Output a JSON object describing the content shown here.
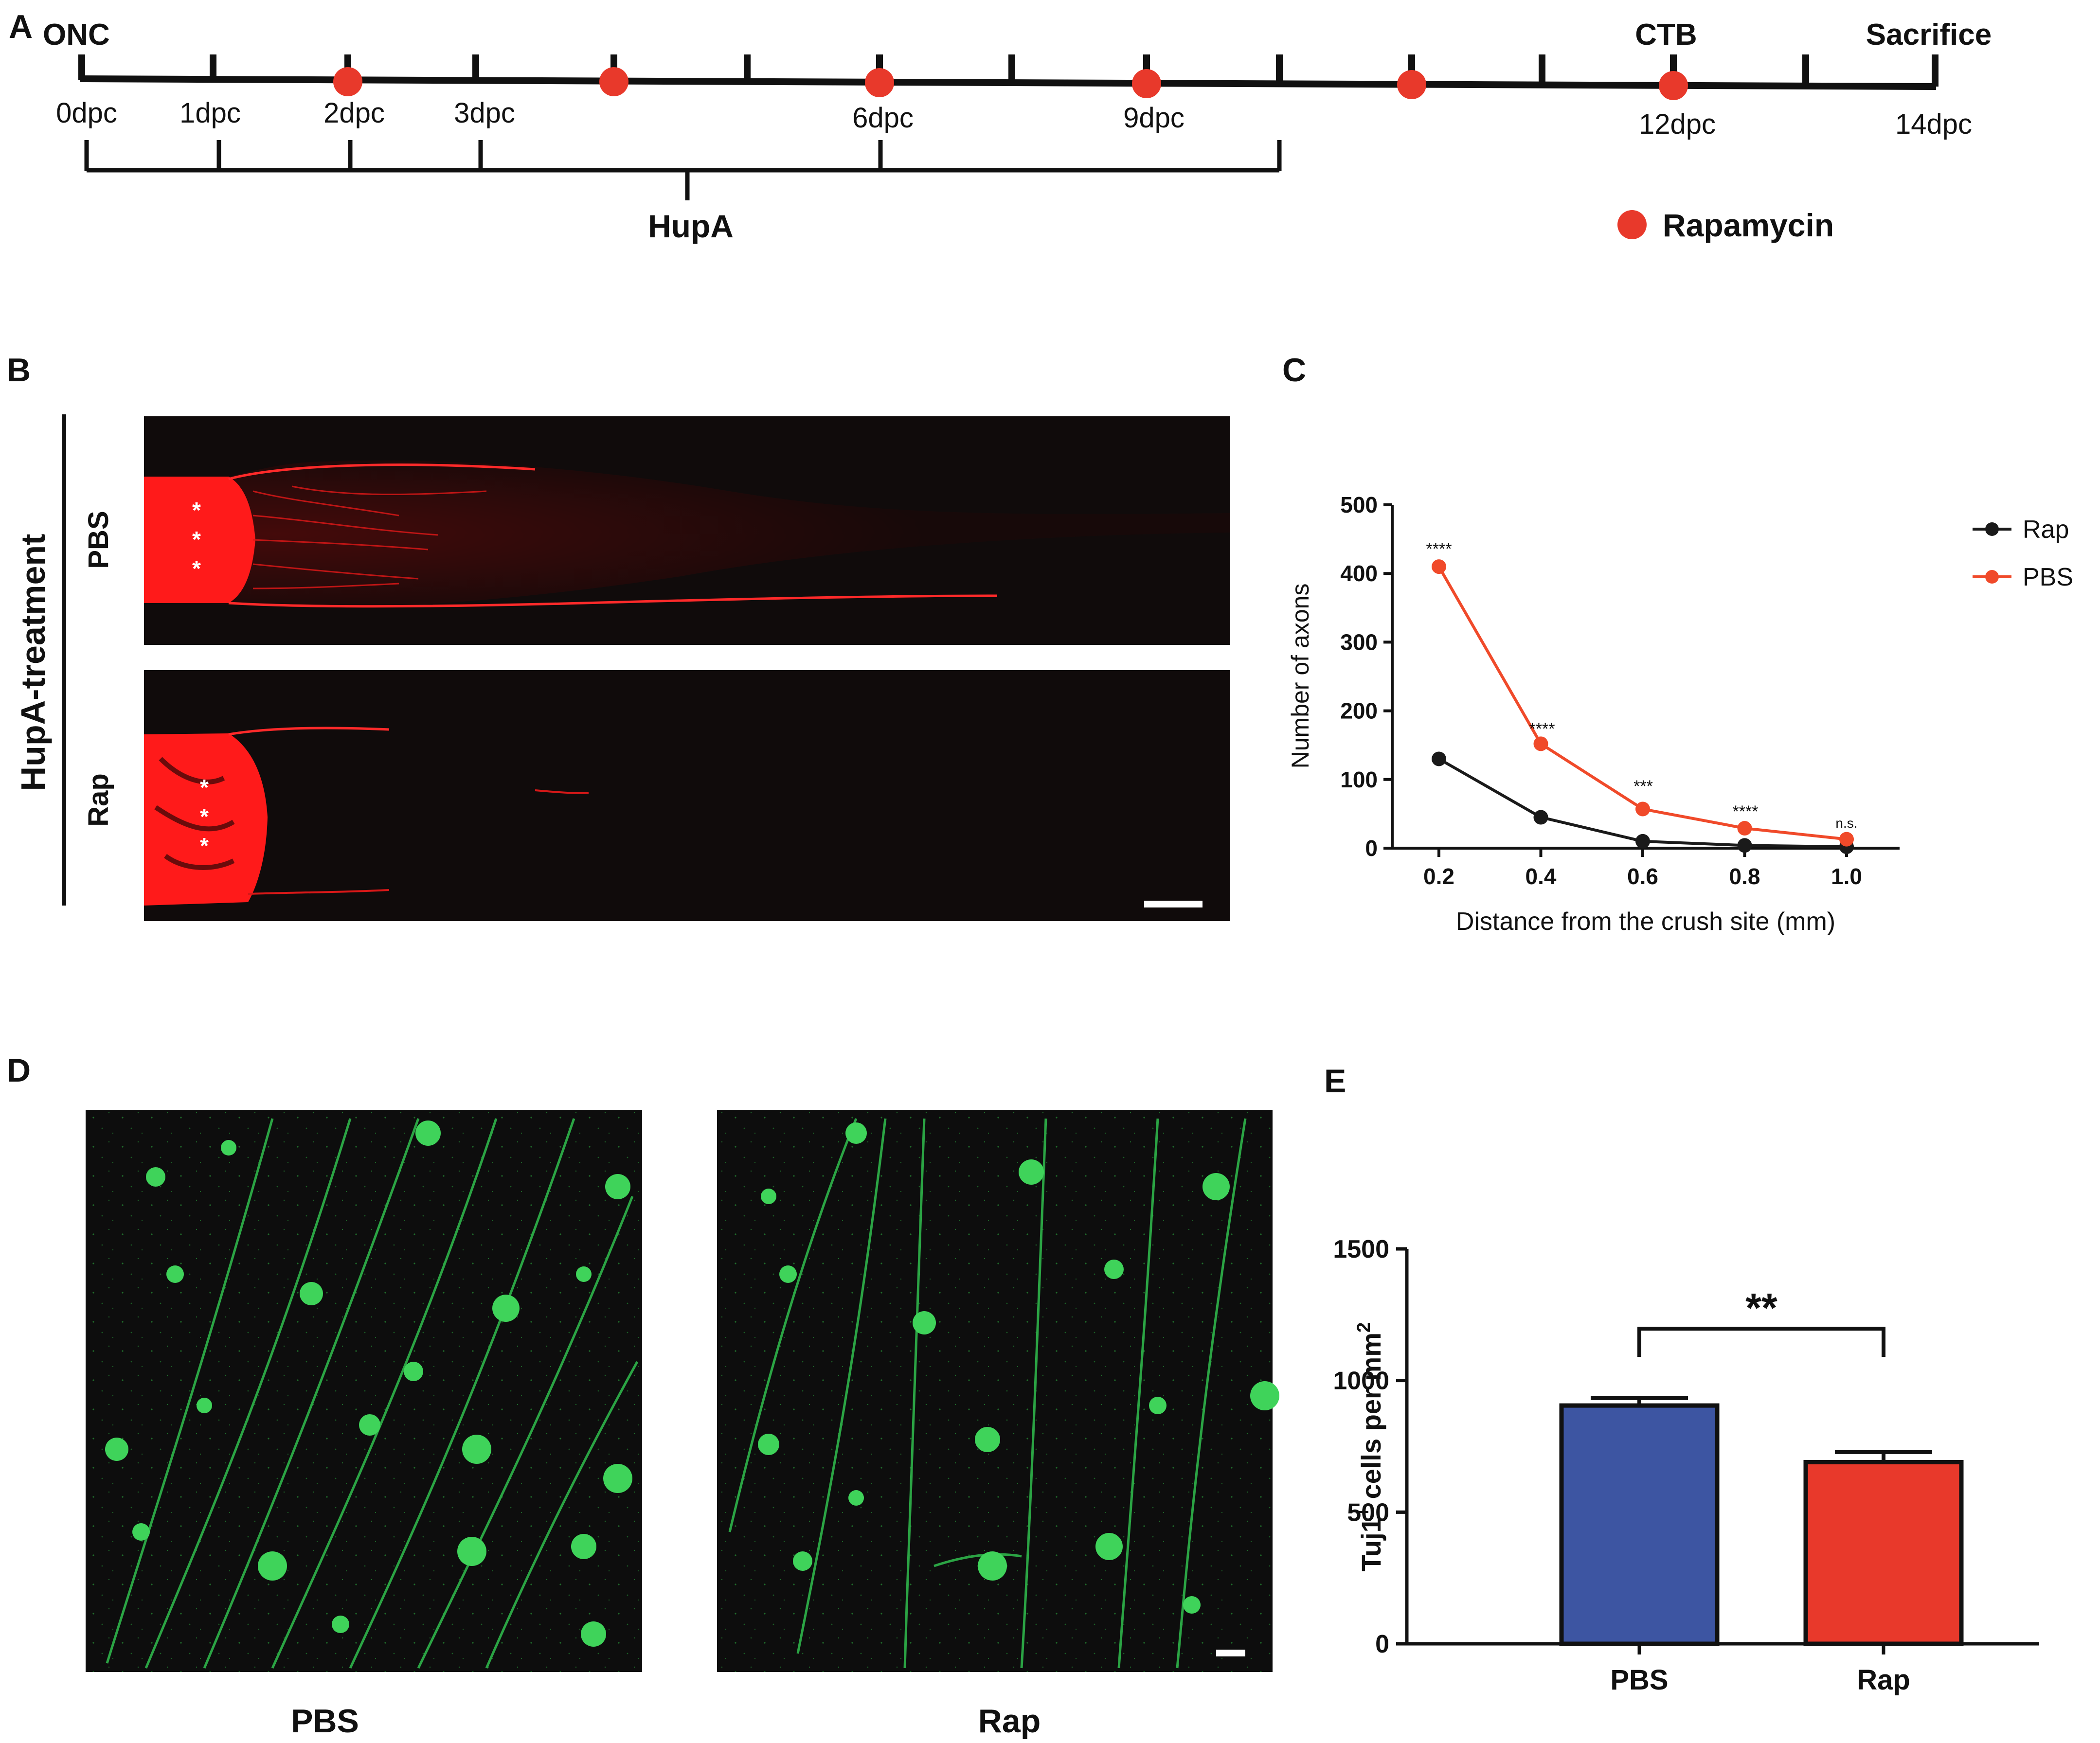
{
  "panels": {
    "A": {
      "letter": "A",
      "start_label": "ONC",
      "ctb_label": "CTB",
      "end_label": "Sacrifice",
      "day_labels": [
        "0dpc",
        "1dpc",
        "2dpc",
        "3dpc",
        "6dpc",
        "9dpc",
        "12dpc",
        "14dpc"
      ],
      "hupa_label": "HupA",
      "legend_label": "Rapamycin",
      "rapamycin_color": "#e8392b"
    },
    "B": {
      "letter": "B",
      "side_label": "HupA-treatment",
      "row_labels": [
        "PBS",
        "Rap"
      ],
      "stain_color": "#ff1a1a"
    },
    "C": {
      "letter": "C",
      "ylabel": "Number of axons",
      "xlabel": "Distance from the crush site (mm)",
      "legend": [
        "Rap",
        "PBS"
      ],
      "significance": [
        "****",
        "****",
        "***",
        "****",
        "n.s."
      ]
    },
    "D": {
      "letter": "D",
      "labels": [
        "PBS",
        "Rap"
      ],
      "stain_color": "#3fd35a"
    },
    "E": {
      "letter": "E",
      "ylabel_main": "Tuj1",
      "ylabel_sup": "+",
      "ylabel_rest": " cells per mm",
      "ylabel_sup2": "2",
      "significance": "**"
    }
  },
  "chart_data": [
    {
      "type": "line",
      "panel": "C",
      "title": "",
      "xlabel": "Distance from the crush site (mm)",
      "ylabel": "Number of axons",
      "x": [
        0.2,
        0.4,
        0.6,
        0.8,
        1.0
      ],
      "x_tick_labels": [
        "0.2",
        "0.4",
        "0.6",
        "0.8",
        "1.0"
      ],
      "y_ticks": [
        0,
        100,
        200,
        300,
        400,
        500
      ],
      "ylim": [
        0,
        500
      ],
      "series": [
        {
          "name": "Rap",
          "values": [
            130,
            45,
            10,
            4,
            2
          ],
          "errors": [
            10,
            3,
            2,
            1,
            1
          ],
          "color": "#1a1a1a"
        },
        {
          "name": "PBS",
          "values": [
            410,
            152,
            57,
            29,
            13
          ],
          "errors": [
            5,
            6,
            4,
            2,
            2
          ],
          "color": "#f04a2a"
        }
      ],
      "legend_position": "top-right",
      "grid": false
    },
    {
      "type": "bar",
      "panel": "E",
      "title": "",
      "categories": [
        "PBS",
        "Rap"
      ],
      "values": [
        905,
        690
      ],
      "errors": [
        28,
        38
      ],
      "colors": [
        "#3d55a2",
        "#e8392b"
      ],
      "ylabel": "Tuj1+ cells per mm2",
      "y_ticks": [
        0,
        500,
        1000,
        1500
      ],
      "ylim": [
        0,
        1500
      ],
      "grid": false
    }
  ]
}
